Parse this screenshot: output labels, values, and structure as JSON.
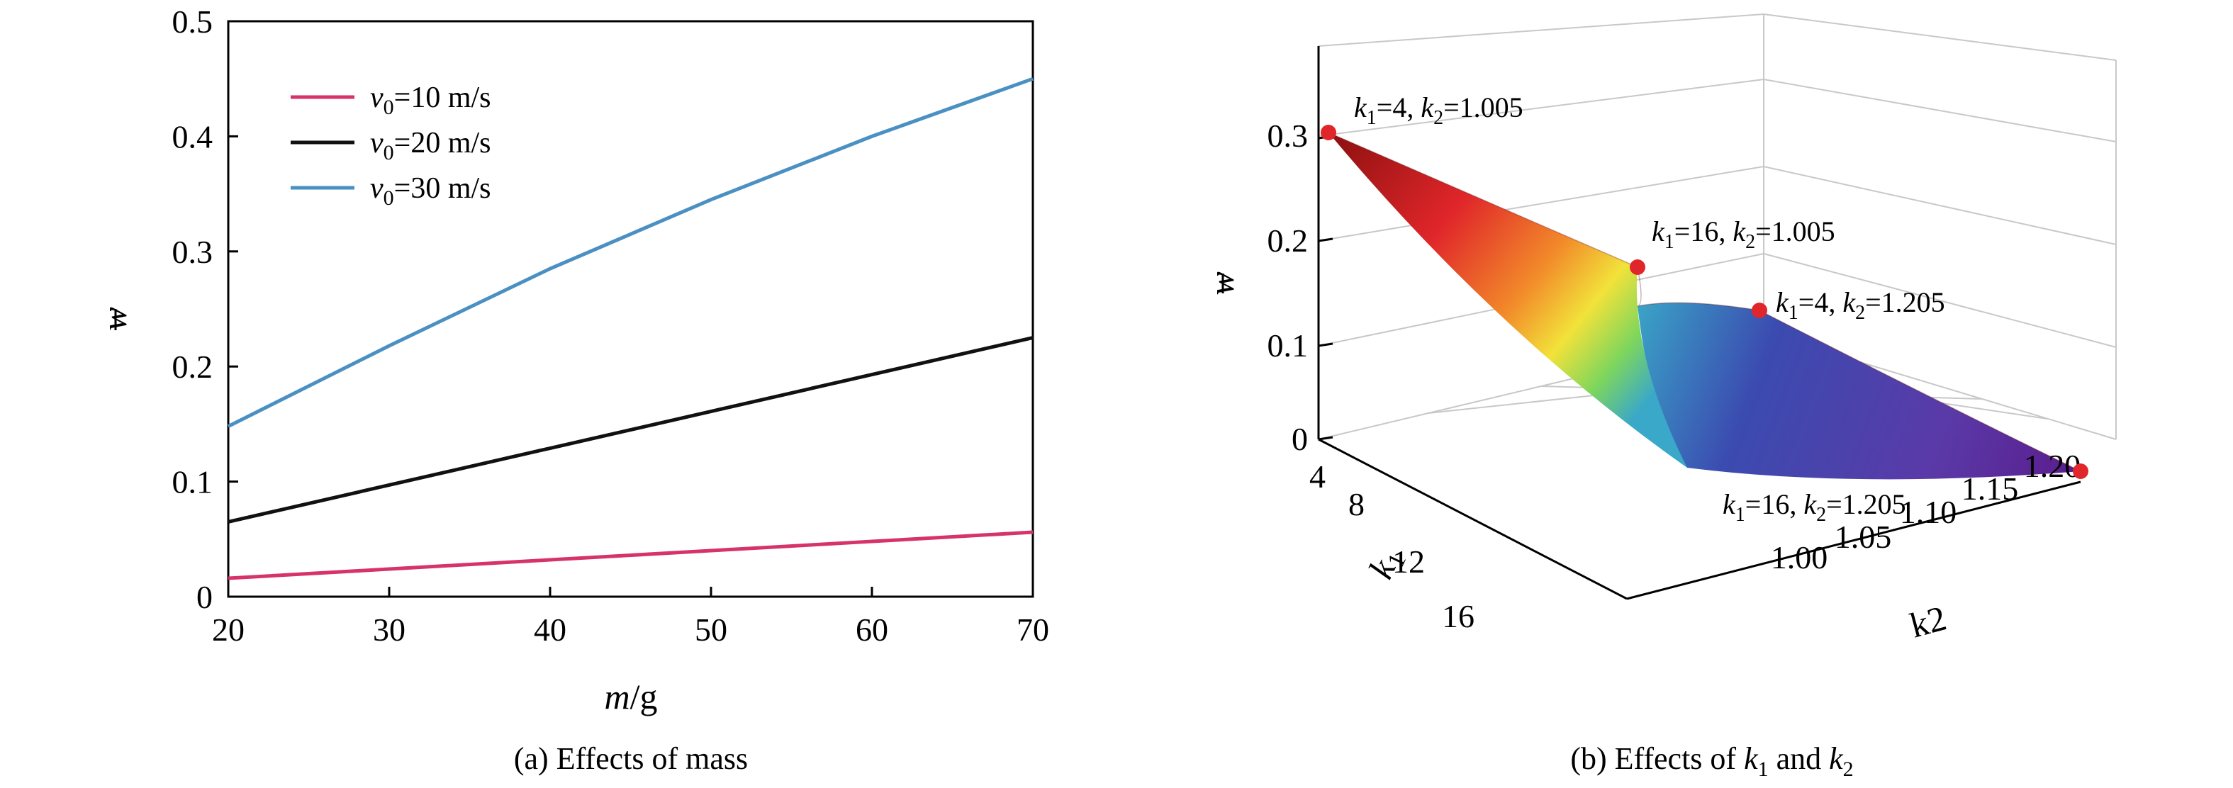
{
  "chart_data": [
    {
      "type": "line",
      "caption": "(a) Effects of mass",
      "xlabel": {
        "italic": "m",
        "rest": "/g"
      },
      "ylabel": "w",
      "xlim": [
        20,
        70
      ],
      "ylim": [
        0,
        0.5
      ],
      "xticks": [
        "20",
        "30",
        "40",
        "50",
        "60",
        "70"
      ],
      "yticks": [
        "0",
        "0.1",
        "0.2",
        "0.3",
        "0.4",
        "0.5"
      ],
      "legend_position": "top-left",
      "series": [
        {
          "name": "v0=10 m/s",
          "legend": {
            "v": "v",
            "sub": "0",
            "rest": "=10 m/s"
          },
          "color": "#d6336c",
          "x": [
            20,
            30,
            40,
            50,
            60,
            70
          ],
          "y": [
            0.016,
            0.024,
            0.032,
            0.04,
            0.048,
            0.056
          ]
        },
        {
          "name": "v0=20 m/s",
          "legend": {
            "v": "v",
            "sub": "0",
            "rest": "=20 m/s"
          },
          "color": "#111111",
          "x": [
            20,
            30,
            40,
            50,
            60,
            70
          ],
          "y": [
            0.065,
            0.097,
            0.129,
            0.161,
            0.193,
            0.225
          ]
        },
        {
          "name": "v0=30 m/s",
          "legend": {
            "v": "v",
            "sub": "0",
            "rest": "=30 m/s"
          },
          "color": "#4a90c2",
          "x": [
            20,
            30,
            40,
            50,
            60,
            70
          ],
          "y": [
            0.148,
            0.218,
            0.285,
            0.345,
            0.4,
            0.45
          ]
        }
      ]
    },
    {
      "type": "surface",
      "caption": "(b) Effects of k1 and k2",
      "caption_parts": {
        "pre": "(b) Effects of ",
        "k": "k",
        "s1": "1",
        "mid": " and ",
        "s2": "2"
      },
      "xlabel": "k1",
      "xlabel_parts": {
        "k": "k",
        "sub": "1"
      },
      "ylabel": "k2",
      "zlabel": "w",
      "k1_ticks": [
        "4",
        "8",
        "12",
        "16"
      ],
      "k2_ticks": [
        "1.00",
        "1.05",
        "1.10",
        "1.15",
        "1.20"
      ],
      "z_ticks": [
        "0",
        "0.1",
        "0.2",
        "0.3"
      ],
      "corners": [
        {
          "k1": 4,
          "k2": 1.005,
          "w": 0.285,
          "text": "k1=4, k2=1.005",
          "parts": {
            "a": "1",
            "av": "=4, ",
            "b": "2",
            "bv": "=1.005"
          }
        },
        {
          "k1": 16,
          "k2": 1.005,
          "w": 0.165,
          "text": "k1=16, k2=1.005",
          "parts": {
            "a": "1",
            "av": "=16, ",
            "b": "2",
            "bv": "=1.005"
          }
        },
        {
          "k1": 4,
          "k2": 1.205,
          "w": 0.095,
          "text": "k1=4, k2=1.205",
          "parts": {
            "a": "1",
            "av": "=4, ",
            "b": "2",
            "bv": "=1.205"
          }
        },
        {
          "k1": 16,
          "k2": 1.205,
          "w": 0.015,
          "text": "k1=16, k2=1.205",
          "parts": {
            "a": "1",
            "av": "=16, ",
            "b": "2",
            "bv": "=1.205"
          }
        }
      ],
      "colormap": [
        "#5a1c8c",
        "#3b4bb0",
        "#3aa8c8",
        "#7ed65c",
        "#f2e23a",
        "#f28a2a",
        "#e0262a",
        "#8c1010"
      ]
    }
  ]
}
